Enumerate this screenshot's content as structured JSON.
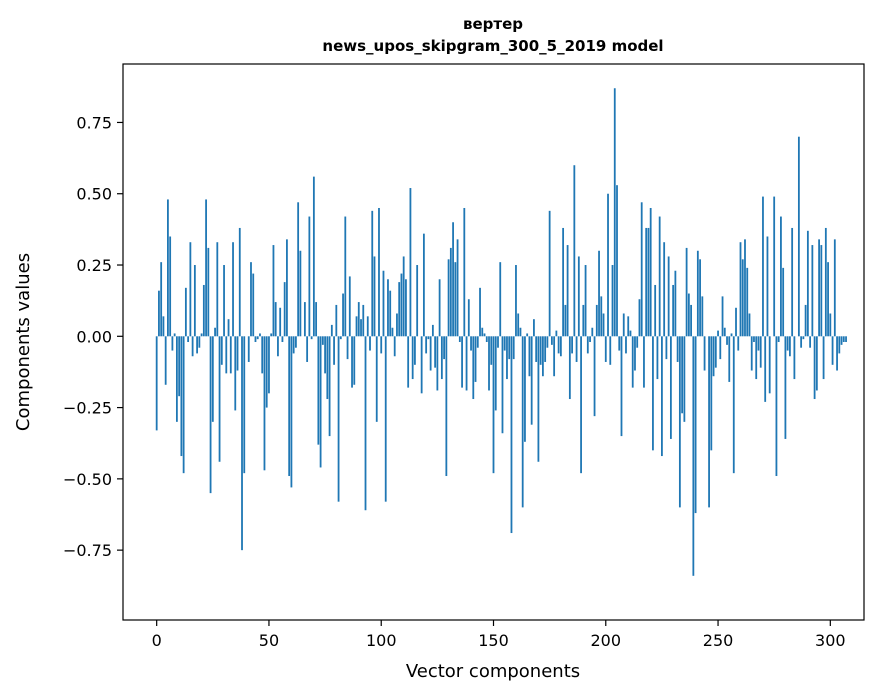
{
  "chart_data": {
    "type": "bar",
    "title": "вертер",
    "subtitle": "news_upos_skipgram_300_5_2019 model",
    "xlabel": "Vector components",
    "ylabel": "Components values",
    "xlim": [
      -15,
      315
    ],
    "ylim": [
      -0.995,
      0.955
    ],
    "xticks": [
      0,
      50,
      100,
      150,
      200,
      250,
      300
    ],
    "yticks": [
      -0.75,
      -0.5,
      -0.25,
      0.0,
      0.25,
      0.5,
      0.75
    ],
    "xtick_labels": [
      "0",
      "50",
      "100",
      "150",
      "200",
      "250",
      "300"
    ],
    "ytick_labels": [
      "−0.75",
      "−0.50",
      "−0.25",
      "0.00",
      "0.25",
      "0.50",
      "0.75"
    ],
    "bar_color": "#1f77b4",
    "x_start": 0,
    "values": [
      -0.33,
      0.16,
      0.26,
      0.07,
      -0.17,
      0.48,
      0.35,
      -0.05,
      0.01,
      -0.3,
      -0.21,
      -0.42,
      -0.48,
      0.17,
      -0.02,
      0.33,
      -0.07,
      0.25,
      -0.06,
      -0.04,
      0.01,
      0.18,
      0.48,
      0.31,
      -0.55,
      -0.3,
      0.03,
      0.33,
      -0.44,
      -0.1,
      0.25,
      -0.13,
      0.06,
      -0.13,
      0.33,
      -0.26,
      -0.12,
      0.38,
      -0.75,
      -0.48,
      0.0,
      -0.09,
      0.26,
      0.22,
      -0.02,
      -0.01,
      0.01,
      -0.13,
      -0.47,
      -0.25,
      -0.2,
      0.01,
      0.32,
      0.12,
      -0.07,
      0.1,
      -0.02,
      0.19,
      0.34,
      -0.49,
      -0.53,
      -0.06,
      -0.04,
      0.47,
      0.3,
      0.0,
      0.12,
      -0.09,
      0.42,
      -0.01,
      0.56,
      0.12,
      -0.38,
      -0.46,
      -0.03,
      -0.13,
      -0.22,
      -0.35,
      0.04,
      -0.1,
      0.11,
      -0.58,
      -0.01,
      0.15,
      0.42,
      -0.08,
      0.21,
      -0.18,
      -0.17,
      0.07,
      0.12,
      0.06,
      0.11,
      -0.61,
      0.07,
      -0.05,
      0.44,
      0.28,
      -0.3,
      0.45,
      -0.06,
      0.23,
      -0.58,
      0.2,
      0.16,
      0.03,
      -0.07,
      0.08,
      0.19,
      0.22,
      0.28,
      0.2,
      -0.18,
      0.52,
      -0.15,
      -0.1,
      0.25,
      0.0,
      -0.2,
      0.36,
      -0.06,
      -0.01,
      -0.12,
      0.04,
      -0.11,
      -0.19,
      0.2,
      -0.15,
      -0.08,
      -0.49,
      0.27,
      0.31,
      0.4,
      0.26,
      0.34,
      -0.02,
      -0.18,
      0.45,
      -0.19,
      0.13,
      -0.05,
      -0.22,
      -0.16,
      -0.04,
      0.17,
      0.03,
      0.01,
      -0.02,
      -0.19,
      -0.1,
      -0.48,
      -0.26,
      -0.04,
      0.26,
      -0.34,
      -0.05,
      -0.15,
      -0.08,
      -0.69,
      -0.08,
      0.25,
      0.08,
      0.03,
      -0.6,
      -0.37,
      0.01,
      -0.14,
      -0.31,
      0.06,
      -0.09,
      -0.44,
      -0.1,
      -0.14,
      -0.09,
      -0.04,
      0.44,
      -0.03,
      -0.14,
      0.02,
      -0.06,
      -0.07,
      0.38,
      0.11,
      0.32,
      -0.22,
      -0.06,
      0.6,
      -0.09,
      0.28,
      -0.48,
      0.11,
      0.25,
      -0.06,
      -0.02,
      0.03,
      -0.28,
      0.11,
      0.3,
      0.14,
      0.08,
      -0.09,
      0.5,
      -0.1,
      0.25,
      0.87,
      0.53,
      -0.05,
      -0.35,
      0.08,
      -0.06,
      0.07,
      0.02,
      -0.18,
      -0.12,
      -0.04,
      0.13,
      0.47,
      -0.18,
      0.38,
      0.38,
      0.45,
      -0.4,
      0.18,
      -0.15,
      0.42,
      -0.42,
      0.33,
      -0.08,
      0.28,
      -0.36,
      0.18,
      0.23,
      -0.09,
      -0.6,
      -0.27,
      -0.3,
      0.31,
      0.15,
      0.11,
      -0.84,
      -0.62,
      0.3,
      0.27,
      0.14,
      -0.12,
      0.0,
      -0.6,
      -0.4,
      -0.14,
      -0.11,
      0.02,
      -0.08,
      0.14,
      0.03,
      -0.03,
      -0.16,
      0.01,
      -0.48,
      0.1,
      -0.05,
      0.33,
      0.27,
      0.34,
      0.24,
      0.08,
      -0.12,
      -0.02,
      -0.15,
      -0.05,
      -0.11,
      0.49,
      -0.23,
      0.35,
      -0.2,
      0.0,
      0.49,
      -0.49,
      -0.02,
      0.42,
      0.24,
      -0.36,
      -0.05,
      -0.07,
      0.38,
      -0.15,
      0.0,
      0.7,
      -0.04,
      -0.01,
      0.11,
      0.37,
      -0.04,
      0.32,
      -0.22,
      -0.19,
      0.34,
      0.32,
      -0.15,
      0.38,
      0.26,
      0.08,
      -0.1,
      0.34,
      -0.12,
      -0.06,
      -0.03,
      -0.02,
      -0.02
    ]
  }
}
